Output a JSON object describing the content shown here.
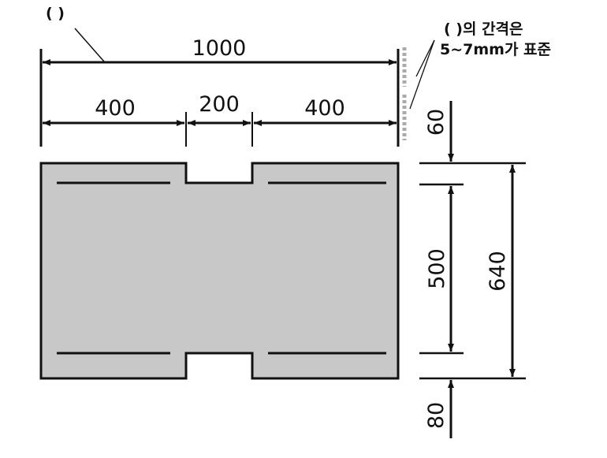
{
  "labels": {
    "top_blank": "(      )",
    "note_line1": "(      )의 간격은",
    "note_line2": "5~7mm가 표준",
    "dim_total": "1000",
    "dim_left": "400",
    "dim_mid": "200",
    "dim_right": "400",
    "dim_top_margin": "60",
    "dim_inner": "500",
    "dim_total_height": "640",
    "dim_bottom_margin": "80"
  },
  "colors": {
    "fill": "#c8c8c8",
    "line": "#111111",
    "dash": "#aaaaaa"
  }
}
